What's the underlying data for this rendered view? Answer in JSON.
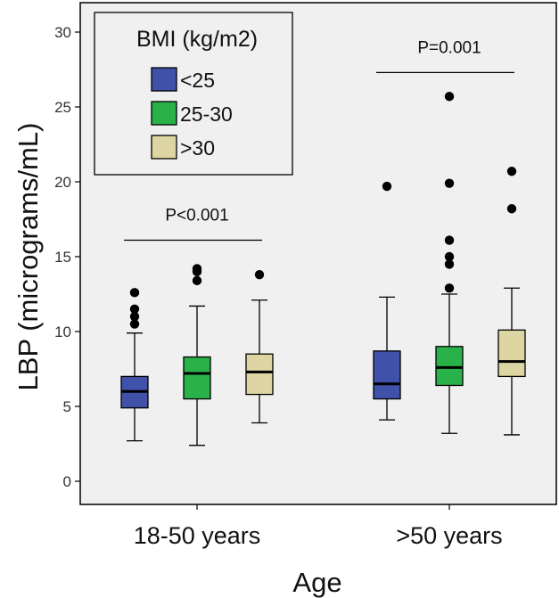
{
  "chart_data": {
    "type": "boxplot",
    "xlabel": "Age",
    "ylabel": "LBP (micrograms/mL)",
    "ylim": [
      0,
      30
    ],
    "yticks": [
      0,
      5,
      10,
      15,
      20,
      25,
      30
    ],
    "grid": false,
    "legend": {
      "title": "BMI (kg/m2)",
      "placement": "top-left",
      "entries": [
        {
          "label": "<25",
          "color": "#3f51a8"
        },
        {
          "label": "25-30",
          "color": "#2ab24a"
        },
        {
          "label": ">30",
          "color": "#ddd6a2"
        }
      ]
    },
    "categories": [
      "18-50 years",
      ">50 years"
    ],
    "series": [
      {
        "name": "<25",
        "color": "#3f51a8",
        "boxes": [
          {
            "min": 2.7,
            "q1": 4.9,
            "median": 6.0,
            "q3": 7.0,
            "max": 9.9,
            "outliers": [
              10.5,
              11.0,
              11.5,
              12.6
            ]
          },
          {
            "min": 4.1,
            "q1": 5.5,
            "median": 6.5,
            "q3": 8.7,
            "max": 12.3,
            "outliers": [
              19.7
            ]
          }
        ]
      },
      {
        "name": "25-30",
        "color": "#2ab24a",
        "boxes": [
          {
            "min": 2.4,
            "q1": 5.5,
            "median": 7.2,
            "q3": 8.3,
            "max": 11.7,
            "outliers": [
              13.4,
              14.0,
              14.2
            ]
          },
          {
            "min": 3.2,
            "q1": 6.4,
            "median": 7.6,
            "q3": 9.0,
            "max": 12.5,
            "outliers": [
              12.9,
              14.5,
              15.0,
              16.1,
              19.9,
              25.7
            ]
          }
        ]
      },
      {
        "name": ">30",
        "color": "#ddd6a2",
        "boxes": [
          {
            "min": 3.9,
            "q1": 5.8,
            "median": 7.3,
            "q3": 8.5,
            "max": 12.1,
            "outliers": [
              13.8
            ]
          },
          {
            "min": 3.1,
            "q1": 7.0,
            "median": 8.0,
            "q3": 10.1,
            "max": 12.9,
            "outliers": [
              18.2,
              20.7
            ]
          }
        ]
      }
    ],
    "annotations": [
      {
        "text": "P<0.001",
        "category": "18-50 years",
        "y": 16.1
      },
      {
        "text": "P=0.001",
        "category": ">50 years",
        "y": 27.3
      }
    ]
  }
}
